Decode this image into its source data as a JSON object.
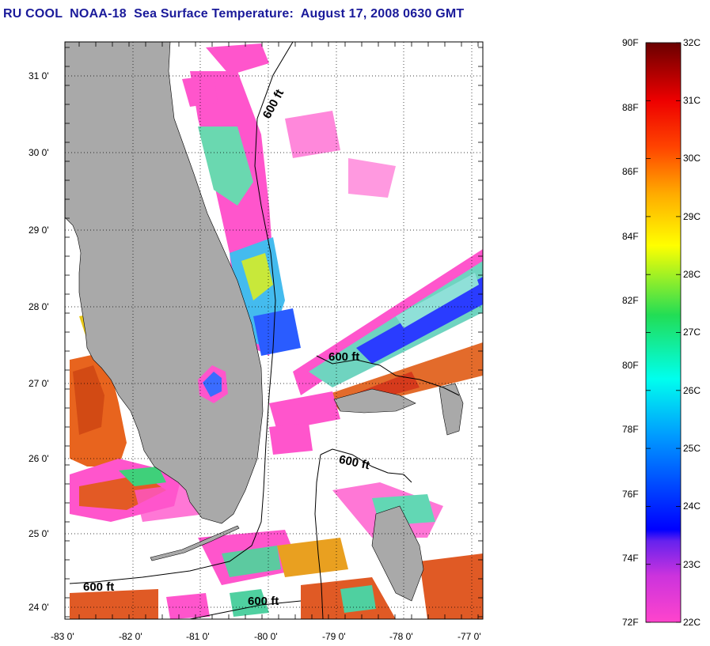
{
  "title": "RU COOL  NOAA-18  Sea Surface Temperature:  August 17, 2008 0630 GMT",
  "colors": {
    "land": "#a9a9a9",
    "grid": "#000000",
    "title": "#1a1a9a",
    "no_data": "#ffffff"
  },
  "map": {
    "lon_range": [
      -83,
      -77
    ],
    "lat_range": [
      23.8,
      31.5
    ],
    "lon_ticks": [
      "-83 0'",
      "-82 0'",
      "-81 0'",
      "-80 0'",
      "-79 0'",
      "-78 0'",
      "-77 0'"
    ],
    "lat_ticks": [
      "31 0'",
      "30 0'",
      "29 0'",
      "28 0'",
      "27 0'",
      "26 0'",
      "25 0'",
      "24 0'"
    ],
    "isobath_labels": [
      "600 ft",
      "600 ft",
      "600 ft",
      "600 ft",
      "600 ft"
    ]
  },
  "colorbar": {
    "f_labels": [
      "90F",
      "88F",
      "86F",
      "84F",
      "82F",
      "80F",
      "78F",
      "76F",
      "74F",
      "72F"
    ],
    "c_labels": [
      "32C",
      "31C",
      "30C",
      "29C",
      "28C",
      "27C",
      "26C",
      "25C",
      "24C",
      "23C",
      "22C"
    ],
    "range_c": [
      22,
      32
    ],
    "colors": [
      "#ff44cc",
      "#8a2be2",
      "#0000ff",
      "#00aaff",
      "#00ffee",
      "#22dd55",
      "#ffff00",
      "#ffaa00",
      "#ff3300",
      "#cc0000",
      "#7a0000"
    ]
  }
}
